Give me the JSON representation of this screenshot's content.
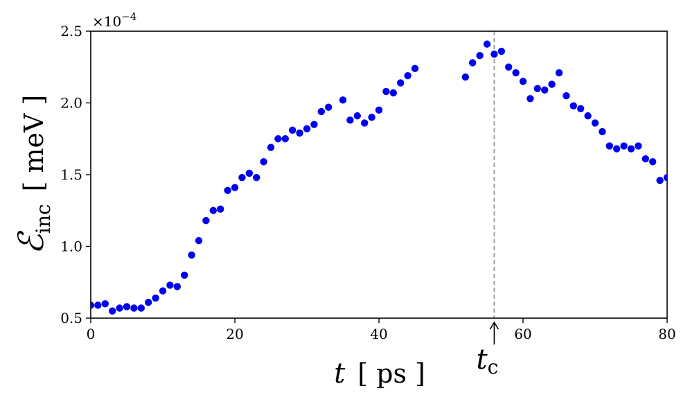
{
  "chart_data": {
    "type": "scatter",
    "title": "",
    "xlabel": {
      "symbol": "t",
      "unit": "ps"
    },
    "ylabel": {
      "symbol": "ℰ",
      "subscript": "inc",
      "unit": "meV"
    },
    "y_scale_label": {
      "base": "×10",
      "exponent": "−4"
    },
    "xlim": [
      0,
      80
    ],
    "ylim": [
      0.5,
      2.5
    ],
    "x_ticks": [
      0,
      20,
      40,
      60,
      80
    ],
    "x_tick_labels": [
      "0",
      "20",
      "40",
      "60",
      "80"
    ],
    "y_ticks": [
      0.5,
      1.0,
      1.5,
      2.0,
      2.5
    ],
    "y_tick_labels": [
      "0.5",
      "1.0",
      "1.5",
      "2.0",
      "2.5"
    ],
    "grid": false,
    "marker_color": "#0000ee",
    "annotation": {
      "label": "t",
      "subscript": "c",
      "x": 56,
      "line_color": "#999999",
      "line_style": "dashed"
    },
    "series": [
      {
        "x": [
          0,
          1,
          2,
          3,
          4,
          5,
          6,
          7,
          8,
          9,
          10,
          11,
          12,
          13,
          14,
          15,
          16,
          17,
          18,
          19,
          20,
          21,
          22,
          23,
          24,
          25,
          26,
          27,
          28,
          29,
          30,
          31,
          32,
          33,
          35,
          36,
          37,
          38,
          39,
          40,
          41,
          42,
          43,
          44,
          45,
          52,
          53,
          54,
          55,
          56,
          57,
          58,
          59,
          60,
          61,
          62,
          63,
          64,
          65,
          66,
          67,
          68,
          69,
          70,
          71,
          72,
          73,
          74,
          75,
          76,
          77,
          78,
          79,
          80
        ],
        "y": [
          0.59,
          0.59,
          0.6,
          0.55,
          0.57,
          0.58,
          0.57,
          0.57,
          0.61,
          0.64,
          0.69,
          0.73,
          0.72,
          0.8,
          0.94,
          1.04,
          1.18,
          1.25,
          1.26,
          1.39,
          1.41,
          1.48,
          1.51,
          1.48,
          1.59,
          1.69,
          1.75,
          1.75,
          1.81,
          1.79,
          1.82,
          1.85,
          1.94,
          1.97,
          2.02,
          1.88,
          1.91,
          1.86,
          1.9,
          1.95,
          2.08,
          2.07,
          2.14,
          2.19,
          2.24,
          2.18,
          2.28,
          2.33,
          2.41,
          2.34,
          2.36,
          2.25,
          2.21,
          2.15,
          2.03,
          2.1,
          2.09,
          2.13,
          2.21,
          2.05,
          1.98,
          1.96,
          1.91,
          1.86,
          1.8,
          1.7,
          1.68,
          1.7,
          1.68,
          1.7,
          1.61,
          1.59,
          1.46,
          1.48
        ]
      }
    ]
  }
}
